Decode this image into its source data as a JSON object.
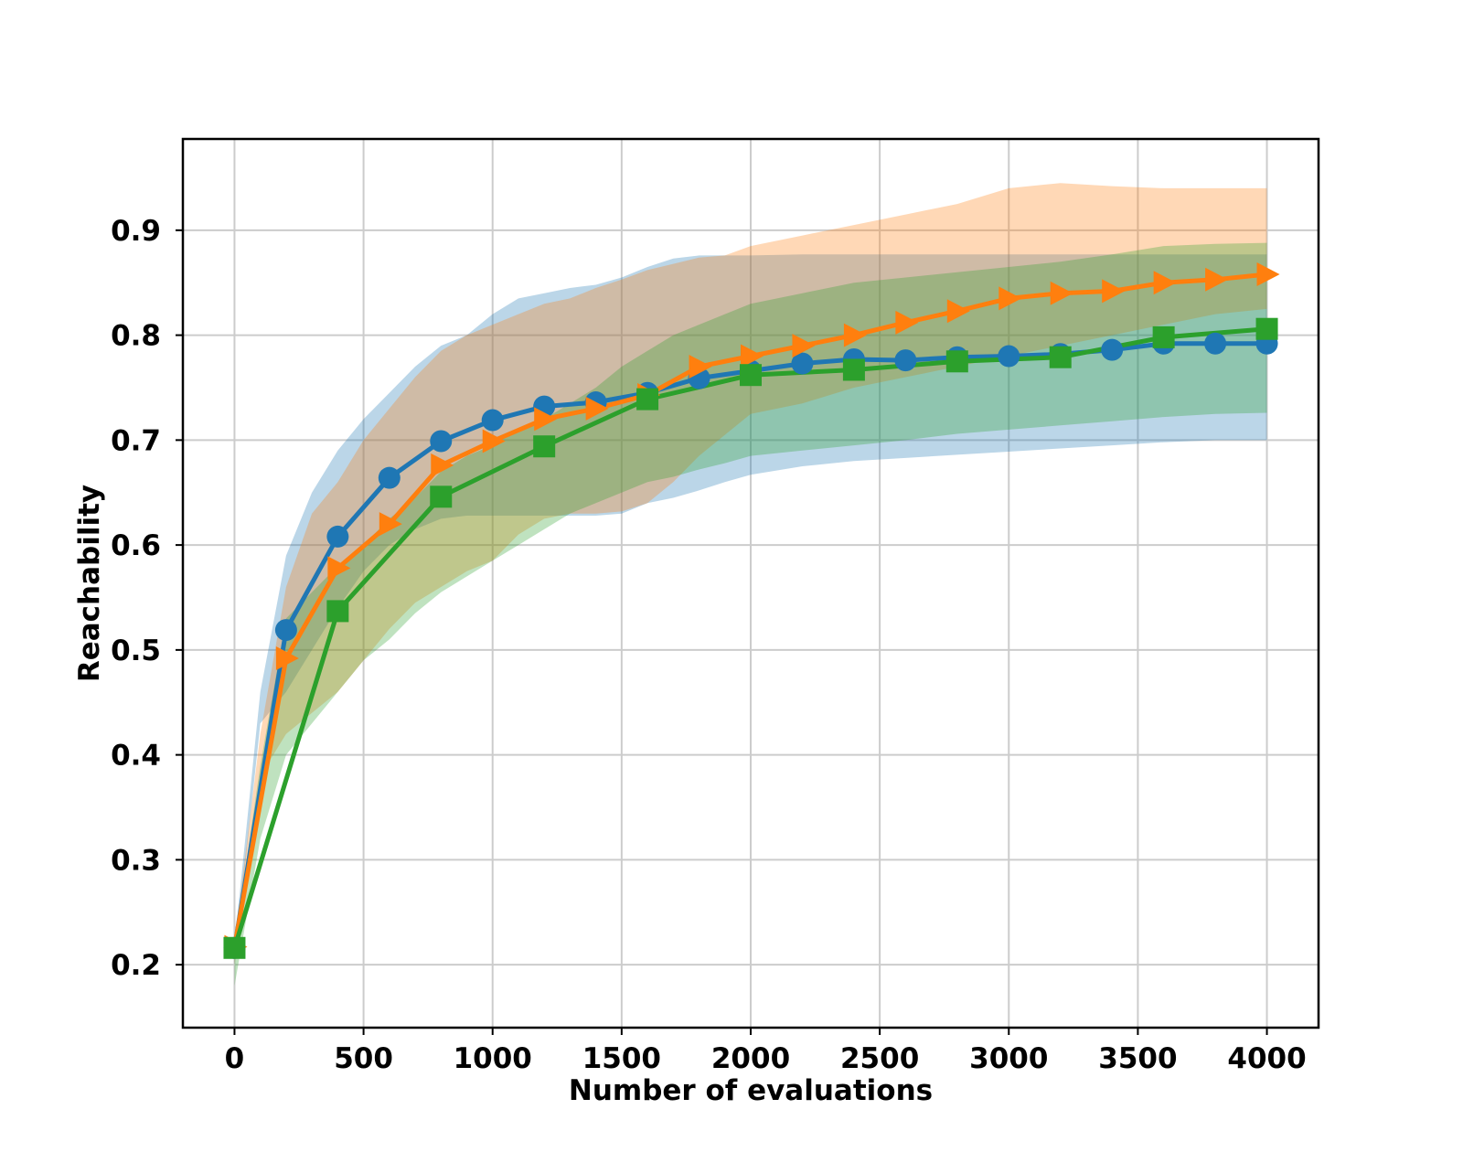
{
  "chart_data": {
    "type": "line",
    "title": "",
    "xlabel": "Number of evaluations",
    "ylabel": "Reachability",
    "xlim": [
      -200,
      4200
    ],
    "ylim": [
      0.14,
      0.987
    ],
    "x_ticks": [
      0,
      500,
      1000,
      1500,
      2000,
      2500,
      3000,
      3500,
      4000
    ],
    "x_tick_labels": [
      "0",
      "500",
      "1000",
      "1500",
      "2000",
      "2500",
      "3000",
      "3500",
      "4000"
    ],
    "y_ticks": [
      0.2,
      0.3,
      0.4,
      0.5,
      0.6,
      0.7,
      0.8,
      0.9
    ],
    "y_tick_labels": [
      "0.2",
      "0.3",
      "0.4",
      "0.5",
      "0.6",
      "0.7",
      "0.8",
      "0.9"
    ],
    "grid": true,
    "legend": "none",
    "series": [
      {
        "color": "#1f77b4",
        "marker": "circle",
        "x": [
          0,
          200,
          400,
          600,
          800,
          1000,
          1200,
          1400,
          1600,
          1800,
          2000,
          2200,
          2400,
          2600,
          2800,
          3000,
          3200,
          3400,
          3600,
          3800,
          4000
        ],
        "y": [
          0.216,
          0.519,
          0.608,
          0.664,
          0.699,
          0.719,
          0.732,
          0.736,
          0.745,
          0.759,
          0.766,
          0.773,
          0.777,
          0.776,
          0.779,
          0.78,
          0.782,
          0.786,
          0.792,
          0.792,
          0.792
        ],
        "band_x": [
          0,
          100,
          200,
          300,
          400,
          500,
          600,
          700,
          800,
          900,
          1000,
          1100,
          1200,
          1300,
          1400,
          1500,
          1600,
          1700,
          1800,
          1900,
          2000,
          2200,
          2400,
          2600,
          2800,
          3000,
          3200,
          3400,
          3600,
          3800,
          4000
        ],
        "band_upper": [
          0.22,
          0.46,
          0.59,
          0.65,
          0.69,
          0.72,
          0.745,
          0.77,
          0.79,
          0.8,
          0.82,
          0.835,
          0.84,
          0.845,
          0.848,
          0.855,
          0.865,
          0.873,
          0.876,
          0.876,
          0.876,
          0.877,
          0.877,
          0.877,
          0.877,
          0.877,
          0.877,
          0.877,
          0.877,
          0.877,
          0.877
        ],
        "band_lower": [
          0.2,
          0.43,
          0.46,
          0.5,
          0.54,
          0.575,
          0.6,
          0.615,
          0.625,
          0.628,
          0.628,
          0.628,
          0.628,
          0.628,
          0.628,
          0.63,
          0.64,
          0.645,
          0.652,
          0.66,
          0.667,
          0.675,
          0.68,
          0.683,
          0.686,
          0.689,
          0.692,
          0.695,
          0.698,
          0.7,
          0.7
        ]
      },
      {
        "color": "#ff7f0e",
        "marker": "triangle-right",
        "x": [
          0,
          200,
          400,
          600,
          800,
          1000,
          1200,
          1400,
          1600,
          1800,
          2000,
          2200,
          2400,
          2600,
          2800,
          3000,
          3200,
          3400,
          3600,
          3800,
          4000
        ],
        "y": [
          0.217,
          0.492,
          0.578,
          0.62,
          0.676,
          0.699,
          0.72,
          0.73,
          0.743,
          0.77,
          0.78,
          0.79,
          0.8,
          0.812,
          0.823,
          0.835,
          0.84,
          0.842,
          0.85,
          0.853,
          0.858
        ],
        "band_x": [
          0,
          100,
          200,
          300,
          400,
          500,
          600,
          700,
          800,
          900,
          1000,
          1100,
          1200,
          1300,
          1400,
          1500,
          1600,
          1700,
          1800,
          1900,
          2000,
          2200,
          2400,
          2600,
          2800,
          3000,
          3200,
          3400,
          3600,
          3800,
          4000
        ],
        "band_upper": [
          0.22,
          0.42,
          0.56,
          0.63,
          0.66,
          0.7,
          0.73,
          0.76,
          0.785,
          0.8,
          0.81,
          0.82,
          0.83,
          0.835,
          0.845,
          0.853,
          0.862,
          0.868,
          0.874,
          0.876,
          0.885,
          0.895,
          0.905,
          0.915,
          0.925,
          0.94,
          0.945,
          0.942,
          0.94,
          0.94,
          0.94
        ],
        "band_lower": [
          0.2,
          0.38,
          0.42,
          0.44,
          0.46,
          0.49,
          0.52,
          0.545,
          0.56,
          0.575,
          0.585,
          0.61,
          0.625,
          0.63,
          0.63,
          0.632,
          0.64,
          0.66,
          0.685,
          0.705,
          0.725,
          0.735,
          0.75,
          0.76,
          0.77,
          0.78,
          0.79,
          0.8,
          0.81,
          0.82,
          0.825
        ]
      },
      {
        "color": "#2ca02c",
        "marker": "square",
        "x": [
          0,
          400,
          800,
          1200,
          1600,
          2000,
          2400,
          2800,
          3200,
          3600,
          4000
        ],
        "y": [
          0.216,
          0.537,
          0.646,
          0.694,
          0.739,
          0.762,
          0.767,
          0.775,
          0.779,
          0.798,
          0.806
        ],
        "band_x": [
          0,
          100,
          200,
          300,
          400,
          500,
          600,
          700,
          800,
          900,
          1000,
          1100,
          1200,
          1300,
          1400,
          1500,
          1600,
          1700,
          1800,
          1900,
          2000,
          2200,
          2400,
          2600,
          2800,
          3000,
          3200,
          3400,
          3600,
          3800,
          4000
        ],
        "band_upper": [
          0.22,
          0.39,
          0.53,
          0.555,
          0.58,
          0.6,
          0.625,
          0.645,
          0.67,
          0.685,
          0.695,
          0.71,
          0.72,
          0.735,
          0.75,
          0.77,
          0.785,
          0.8,
          0.81,
          0.82,
          0.83,
          0.84,
          0.85,
          0.855,
          0.86,
          0.865,
          0.87,
          0.877,
          0.885,
          0.887,
          0.888
        ],
        "band_lower": [
          0.18,
          0.32,
          0.4,
          0.43,
          0.46,
          0.49,
          0.51,
          0.535,
          0.555,
          0.57,
          0.585,
          0.6,
          0.615,
          0.63,
          0.64,
          0.65,
          0.66,
          0.665,
          0.672,
          0.678,
          0.685,
          0.69,
          0.695,
          0.7,
          0.706,
          0.71,
          0.714,
          0.718,
          0.722,
          0.725,
          0.726
        ]
      }
    ]
  }
}
